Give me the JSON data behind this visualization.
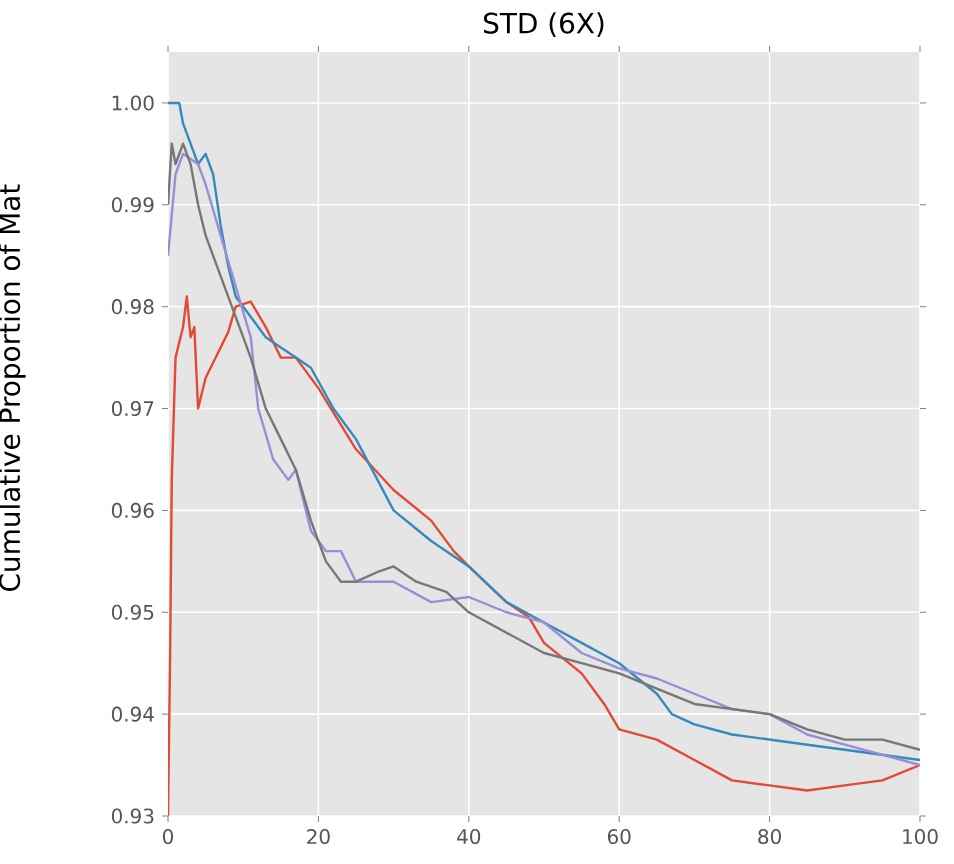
{
  "chart_data": {
    "type": "line",
    "title": "STD (6X)",
    "ylabel": "Cumulative Proportion of Mat",
    "xlim": [
      0,
      100
    ],
    "ylim": [
      0.93,
      1.005
    ],
    "xticks": [
      0,
      20,
      40,
      60,
      80,
      100
    ],
    "yticks": [
      {
        "value": 0.93,
        "label": "0.93"
      },
      {
        "value": 0.94,
        "label": "0.94"
      },
      {
        "value": 0.95,
        "label": "0.95"
      },
      {
        "value": 0.96,
        "label": "0.96"
      },
      {
        "value": 0.97,
        "label": "0.97"
      },
      {
        "value": 0.98,
        "label": "0.98"
      },
      {
        "value": 0.99,
        "label": "0.99"
      },
      {
        "value": 1.0,
        "label": "1.00"
      }
    ],
    "grid": true,
    "line_style": "solid",
    "series": [
      {
        "color": "#e24a33",
        "x": [
          0,
          0.3,
          0.5,
          1,
          2,
          2.5,
          3,
          3.5,
          4,
          5,
          7,
          8,
          9,
          11,
          13,
          15,
          17,
          20,
          25,
          30,
          35,
          38,
          40,
          45,
          48,
          50,
          55,
          58,
          60,
          65,
          70,
          75,
          80,
          85,
          90,
          95,
          100
        ],
        "values": [
          0.93,
          0.947,
          0.963,
          0.975,
          0.978,
          0.981,
          0.977,
          0.978,
          0.97,
          0.973,
          0.976,
          0.9775,
          0.98,
          0.9805,
          0.978,
          0.975,
          0.975,
          0.972,
          0.966,
          0.962,
          0.959,
          0.956,
          0.9545,
          0.951,
          0.9495,
          0.947,
          0.944,
          0.941,
          0.9385,
          0.9375,
          0.9355,
          0.9335,
          0.933,
          0.9325,
          0.933,
          0.9335,
          0.935
        ]
      },
      {
        "color": "#348abd",
        "x": [
          0,
          1.5,
          2,
          3,
          4,
          5,
          6,
          7,
          8,
          9,
          11,
          13,
          15,
          17,
          19,
          22,
          25,
          30,
          35,
          40,
          45,
          50,
          55,
          60,
          65,
          67,
          70,
          75,
          80,
          85,
          90,
          95,
          100
        ],
        "values": [
          1.0,
          1.0,
          0.998,
          0.996,
          0.994,
          0.995,
          0.993,
          0.988,
          0.984,
          0.981,
          0.979,
          0.977,
          0.976,
          0.975,
          0.974,
          0.97,
          0.967,
          0.96,
          0.957,
          0.9545,
          0.951,
          0.949,
          0.947,
          0.945,
          0.942,
          0.94,
          0.939,
          0.938,
          0.9375,
          0.937,
          0.9365,
          0.936,
          0.9355
        ]
      },
      {
        "color": "#988ed5",
        "x": [
          0,
          1,
          2,
          4,
          5,
          7,
          9,
          11,
          12,
          14,
          16,
          17,
          19,
          21,
          23,
          25,
          30,
          35,
          40,
          45,
          50,
          55,
          60,
          65,
          70,
          75,
          80,
          85,
          90,
          95,
          100
        ],
        "values": [
          0.985,
          0.993,
          0.995,
          0.994,
          0.992,
          0.987,
          0.982,
          0.977,
          0.97,
          0.965,
          0.963,
          0.964,
          0.958,
          0.956,
          0.956,
          0.953,
          0.953,
          0.951,
          0.9515,
          0.95,
          0.949,
          0.946,
          0.9445,
          0.9435,
          0.942,
          0.9405,
          0.94,
          0.938,
          0.937,
          0.936,
          0.935
        ]
      },
      {
        "color": "#777777",
        "x": [
          0,
          0.5,
          1,
          2,
          3,
          4,
          5,
          7,
          9,
          11,
          13,
          15,
          17,
          19,
          21,
          23,
          25,
          28,
          30,
          33,
          37,
          40,
          45,
          50,
          55,
          60,
          65,
          70,
          75,
          80,
          85,
          90,
          95,
          100
        ],
        "values": [
          0.99,
          0.996,
          0.994,
          0.996,
          0.994,
          0.99,
          0.987,
          0.983,
          0.979,
          0.975,
          0.97,
          0.967,
          0.964,
          0.959,
          0.955,
          0.953,
          0.953,
          0.954,
          0.9545,
          0.953,
          0.952,
          0.95,
          0.948,
          0.946,
          0.945,
          0.944,
          0.9425,
          0.941,
          0.9405,
          0.94,
          0.9385,
          0.9375,
          0.9375,
          0.9365
        ]
      }
    ]
  }
}
